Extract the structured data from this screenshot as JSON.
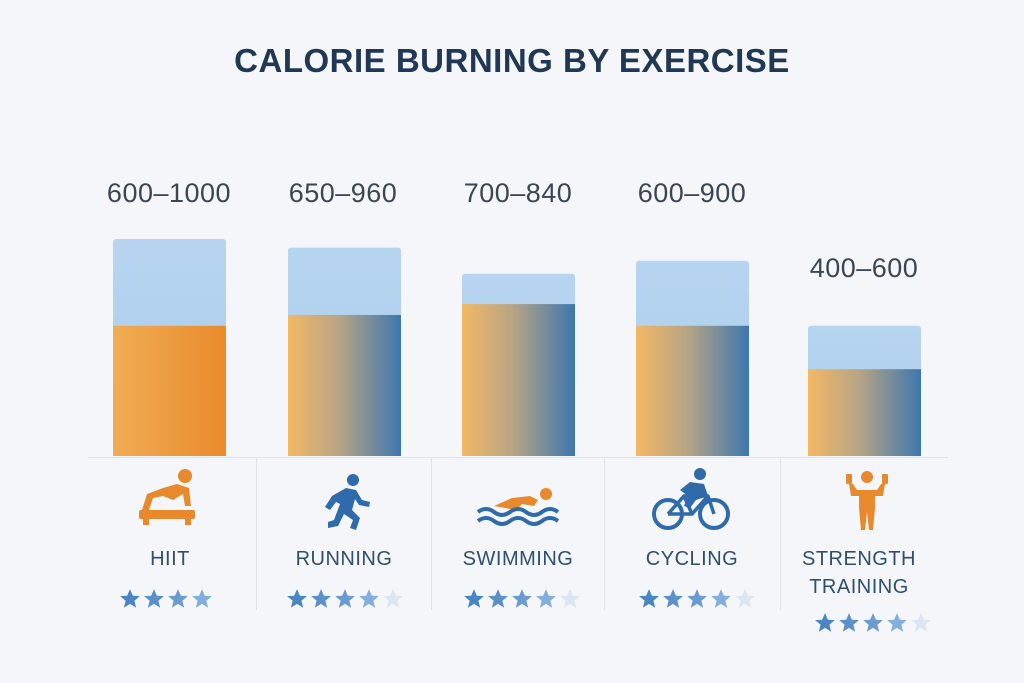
{
  "chart_data": {
    "type": "bar",
    "title": "CALORIE BURNING BY EXERCISE",
    "categories": [
      "HIIT",
      "RUNNING",
      "SWIMMING",
      "CYCLING",
      "STRENGTH TRAINING"
    ],
    "range_labels": [
      "600–1000",
      "650–960",
      "700–840",
      "600–900",
      "400–600"
    ],
    "series": [
      {
        "values_low": [
          600,
          650,
          700,
          600,
          400
        ]
      },
      {
        "values_high": [
          1000,
          960,
          840,
          900,
          600
        ]
      }
    ],
    "ratings": [
      4,
      4,
      4,
      4,
      4
    ],
    "ylim": [
      0,
      1100
    ],
    "grid": false,
    "legend": "none",
    "colors": {
      "upper": "#b4d3ef",
      "lower_orange": "#ee9c3c",
      "lower_blue": "#3f78ad",
      "star_dark": "#4f88c6",
      "star_light": "#dbe6f2"
    }
  },
  "icons": [
    "hiit-icon",
    "running-icon",
    "swimming-icon",
    "cycling-icon",
    "strength-training-icon"
  ]
}
